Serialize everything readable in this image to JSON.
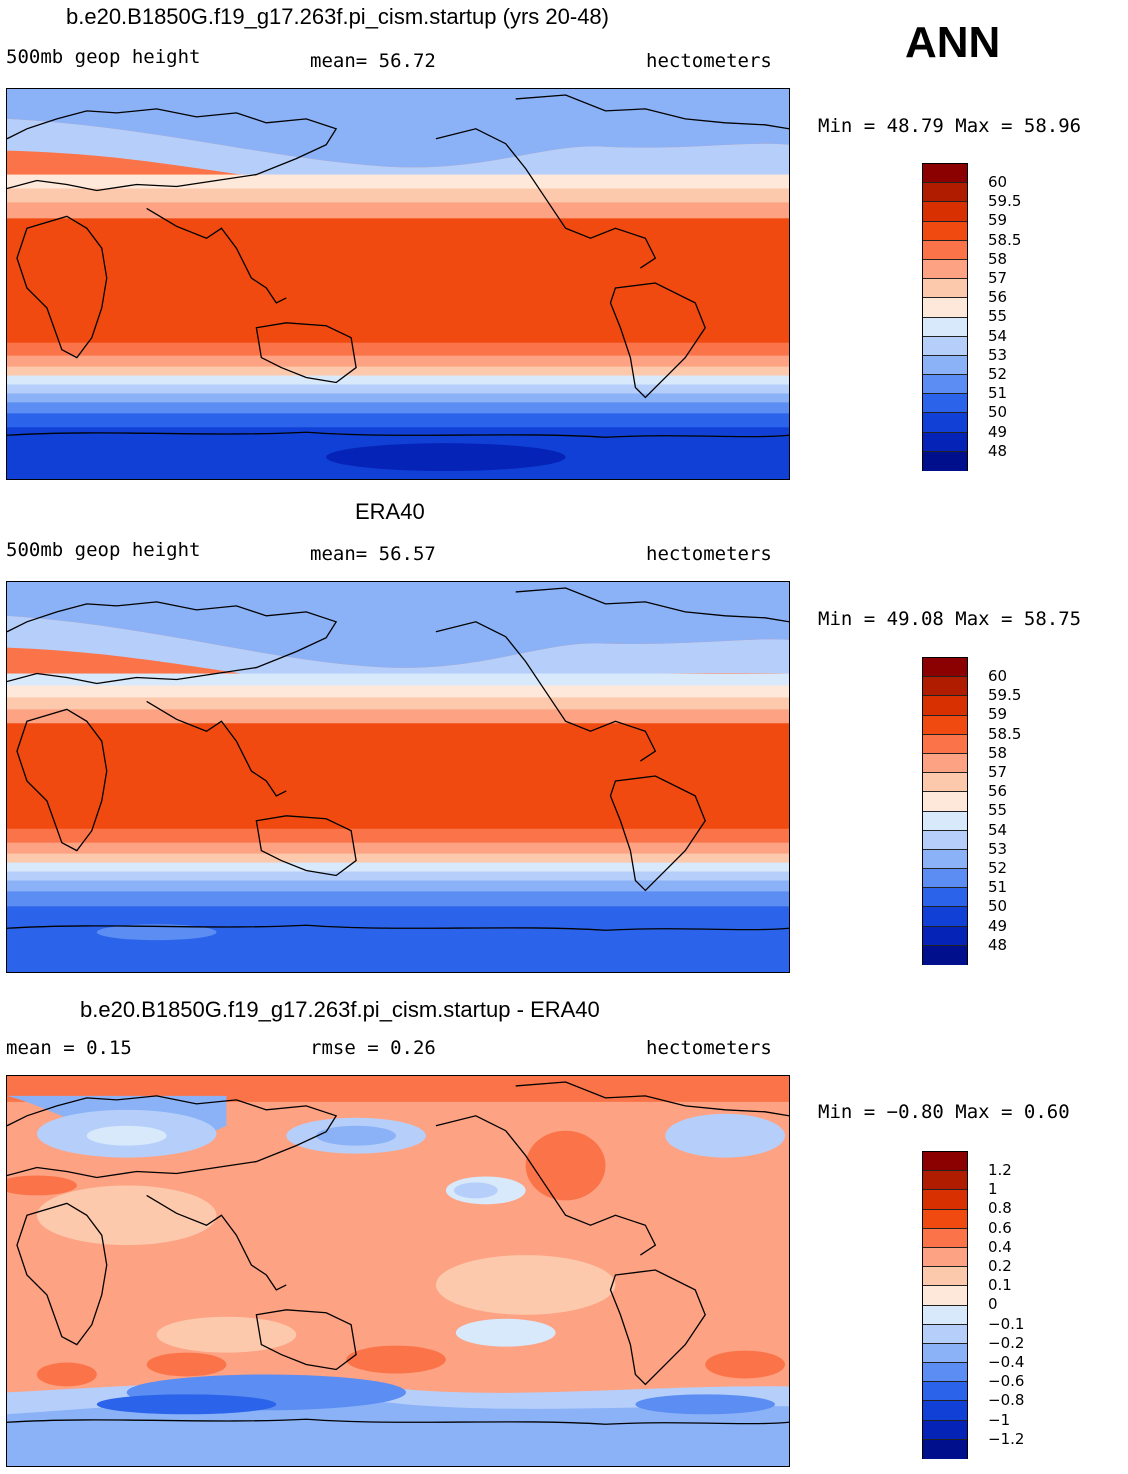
{
  "season": "ANN",
  "panels": [
    {
      "title": "b.e20.B1850G.f19_g17.263f.pi_cism.startup (yrs 20-48)",
      "left_label": "500mb geop height",
      "center_label": "mean=  56.72",
      "units": "hectometers",
      "minmax": "Min =  48.79 Max =  58.96",
      "levels": [
        "60",
        "59.5",
        "59",
        "58.5",
        "58",
        "57",
        "56",
        "55",
        "54",
        "53",
        "52",
        "51",
        "50",
        "49",
        "48"
      ],
      "colors": [
        "#8b0000",
        "#b01c00",
        "#d83000",
        "#f04a10",
        "#fb7348",
        "#fda283",
        "#fdc9ad",
        "#fde8da",
        "#d8e9fb",
        "#b6cffa",
        "#8bb2f7",
        "#5b8df2",
        "#2b64ea",
        "#1040d6",
        "#0523b6",
        "#000f8b"
      ]
    },
    {
      "title": "ERA40",
      "left_label": "500mb geop height",
      "center_label": "mean=  56.57",
      "units": "hectometers",
      "minmax": "Min =  49.08 Max =  58.75",
      "levels": [
        "60",
        "59.5",
        "59",
        "58.5",
        "58",
        "57",
        "56",
        "55",
        "54",
        "53",
        "52",
        "51",
        "50",
        "49",
        "48"
      ],
      "colors": [
        "#8b0000",
        "#b01c00",
        "#d83000",
        "#f04a10",
        "#fb7348",
        "#fda283",
        "#fdc9ad",
        "#fde8da",
        "#d8e9fb",
        "#b6cffa",
        "#8bb2f7",
        "#5b8df2",
        "#2b64ea",
        "#1040d6",
        "#0523b6",
        "#000f8b"
      ]
    },
    {
      "title": "b.e20.B1850G.f19_g17.263f.pi_cism.startup - ERA40",
      "left_label": "mean =    0.15",
      "center_label": "rmse =    0.26",
      "units": "hectometers",
      "minmax": "Min =  −0.80 Max =    0.60",
      "levels": [
        "1.2",
        "1",
        "0.8",
        "0.6",
        "0.4",
        "0.2",
        "0.1",
        "0",
        "−0.1",
        "−0.2",
        "−0.4",
        "−0.6",
        "−0.8",
        "−1",
        "−1.2"
      ],
      "colors": [
        "#8b0000",
        "#b01c00",
        "#d83000",
        "#f04a10",
        "#fb7348",
        "#fda283",
        "#fdc9ad",
        "#fde8da",
        "#d8e9fb",
        "#b6cffa",
        "#8bb2f7",
        "#5b8df2",
        "#2b64ea",
        "#1040d6",
        "#0523b6",
        "#000f8b"
      ]
    }
  ]
}
